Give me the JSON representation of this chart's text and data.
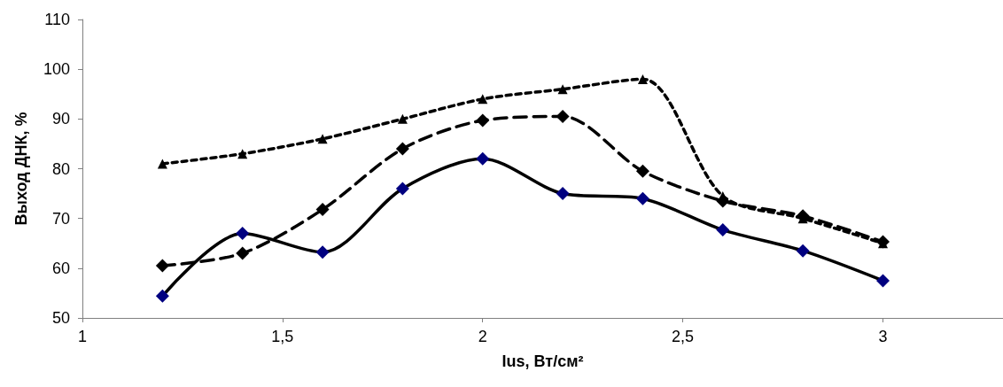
{
  "chart_data": {
    "type": "line",
    "xlabel": "Ius, Вт/см²",
    "ylabel": "Выход ДНК, %",
    "x": [
      1.2,
      1.4,
      1.6,
      1.8,
      2.0,
      2.2,
      2.4,
      2.6,
      2.8,
      3.0
    ],
    "series": [
      {
        "color": "#000080",
        "values": [
          54.4,
          67,
          63.2,
          76,
          82,
          75,
          74,
          67.7,
          63.5,
          57.5
        ],
        "line_style": "solid",
        "marker": "diamond"
      },
      {
        "color": "#000000",
        "values": [
          60.5,
          63,
          71.8,
          84,
          89.7,
          90.5,
          79.5,
          73.5,
          70.5,
          65.3
        ],
        "line_style": "dashed",
        "marker": "diamond"
      },
      {
        "color": "#000000",
        "values": [
          81,
          83,
          86,
          90,
          94,
          96,
          98,
          74.5,
          70,
          65
        ],
        "line_style": "dotted",
        "marker": "triangle"
      }
    ],
    "xlim": [
      1,
      3.3
    ],
    "xticks": [
      1,
      {
        "value": 1.5,
        "label": "1,5"
      },
      2,
      {
        "value": 2.5,
        "label": "2,5"
      },
      3
    ],
    "ylim": [
      50,
      110
    ],
    "yticks": [
      50,
      60,
      70,
      80,
      90,
      100,
      110
    ],
    "grid": false
  }
}
